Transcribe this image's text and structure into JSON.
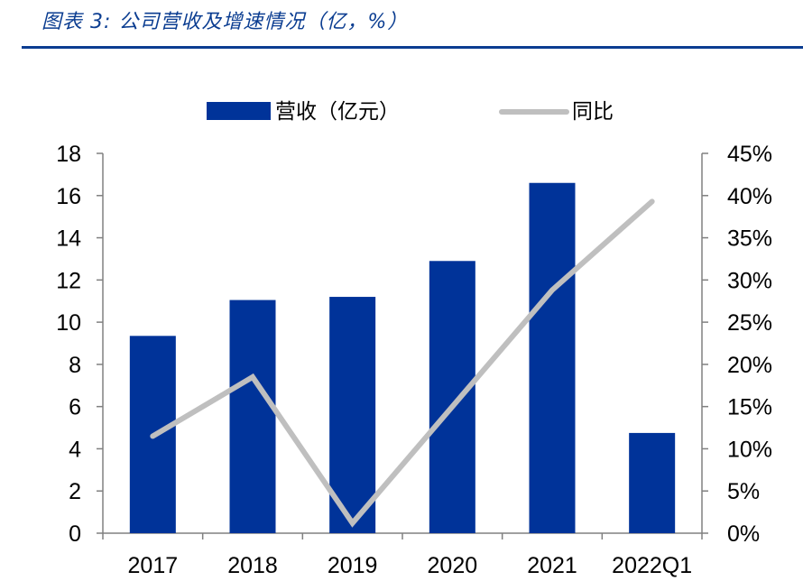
{
  "header": {
    "title": "图表 3:  公司营收及增速情况（亿，%）"
  },
  "chart_data": {
    "type": "bar",
    "title": "公司营收及增速情况（亿，%）",
    "categories": [
      "2017",
      "2018",
      "2019",
      "2020",
      "2021",
      "2022Q1"
    ],
    "series": [
      {
        "name": "营收（亿元）",
        "kind": "bar",
        "axis": "left",
        "color": "#003399",
        "values": [
          9.35,
          11.05,
          11.2,
          12.9,
          16.6,
          4.75
        ]
      },
      {
        "name": "同比",
        "kind": "line",
        "axis": "right",
        "color": "#bfbfbf",
        "values": [
          11.5,
          18.5,
          1.2,
          null,
          28.8,
          39.3
        ]
      }
    ],
    "y_left": {
      "min": 0,
      "max": 18,
      "ticks": [
        0,
        2,
        4,
        6,
        8,
        10,
        12,
        14,
        16,
        18
      ],
      "tick_labels": [
        "0",
        "2",
        "4",
        "6",
        "8",
        "10",
        "12",
        "14",
        "16",
        "18"
      ]
    },
    "y_right": {
      "min": 0,
      "max": 45,
      "ticks": [
        0,
        5,
        10,
        15,
        20,
        25,
        30,
        35,
        40,
        45
      ],
      "tick_labels": [
        "0%",
        "5%",
        "10%",
        "15%",
        "20%",
        "25%",
        "30%",
        "35%",
        "40%",
        "45%"
      ]
    },
    "legend": {
      "position": "top",
      "bar_label": "营收（亿元）",
      "line_label": "同比"
    },
    "grid": false
  }
}
